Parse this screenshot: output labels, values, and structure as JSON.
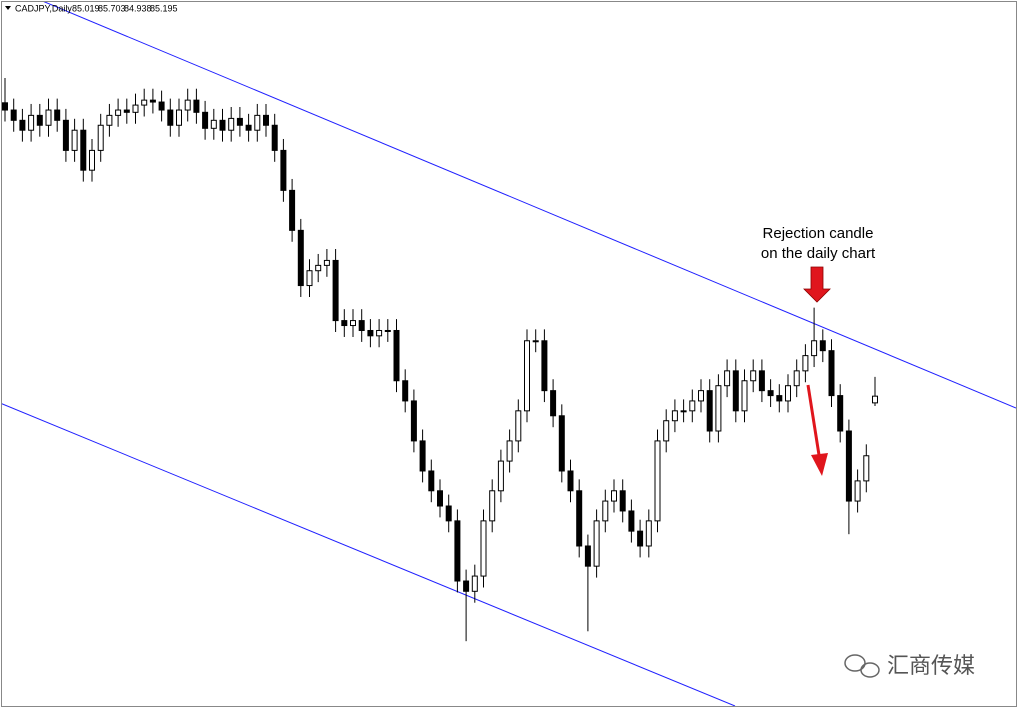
{
  "chart_data": {
    "type": "candlestick",
    "symbol": "CADJPY,Daily",
    "annotation": [
      "Rejection candle",
      "on the daily chart"
    ],
    "watermark": "汇商传媒",
    "ylim": [
      76.9,
      95.6
    ],
    "open": [
      92.9,
      92.71,
      92.44,
      92.18,
      92.57,
      92.31,
      92.71,
      92.44,
      91.65,
      92.18,
      91.13,
      91.65,
      92.31,
      92.57,
      92.71,
      92.65,
      92.84,
      92.97,
      92.92,
      92.71,
      92.31,
      92.71,
      92.97,
      92.65,
      92.23,
      92.44,
      92.18,
      92.49,
      92.31,
      92.18,
      92.57,
      92.31,
      91.65,
      90.6,
      89.55,
      88.1,
      88.49,
      88.63,
      88.76,
      87.18,
      87.05,
      87.18,
      86.92,
      86.78,
      86.92,
      86.92,
      85.6,
      85.07,
      84.02,
      83.23,
      82.71,
      82.31,
      81.92,
      80.34,
      80.07,
      80.47,
      81.92,
      82.71,
      83.49,
      84.02,
      84.81,
      86.65,
      86.65,
      85.34,
      84.68,
      83.23,
      82.71,
      81.26,
      80.73,
      81.92,
      82.44,
      82.71,
      82.18,
      81.65,
      81.26,
      81.92,
      84.02,
      84.55,
      84.81,
      84.81,
      85.07,
      85.34,
      84.28,
      85.47,
      85.86,
      84.81,
      85.6,
      85.86,
      85.34,
      85.21,
      85.07,
      85.47,
      85.86,
      86.26,
      86.65,
      86.39,
      85.21,
      84.28,
      82.44,
      82.97,
      85.019
    ],
    "high": [
      93.55,
      93.01,
      92.74,
      92.87,
      92.87,
      93.01,
      93.01,
      92.74,
      92.48,
      92.48,
      91.95,
      92.61,
      92.87,
      93.01,
      93.01,
      93.14,
      93.27,
      93.27,
      93.22,
      93.01,
      93.01,
      93.27,
      93.27,
      92.95,
      92.74,
      92.74,
      92.79,
      92.79,
      92.61,
      92.87,
      92.87,
      92.61,
      91.95,
      90.9,
      89.85,
      88.79,
      88.93,
      89.06,
      89.06,
      87.48,
      87.48,
      87.48,
      87.22,
      87.22,
      87.22,
      87.22,
      85.9,
      85.37,
      84.32,
      83.53,
      83.01,
      82.61,
      82.22,
      80.64,
      80.77,
      82.22,
      83.01,
      83.79,
      84.32,
      85.11,
      86.95,
      86.95,
      86.95,
      85.64,
      84.98,
      83.53,
      83.01,
      81.56,
      82.22,
      82.74,
      83.01,
      83.01,
      82.48,
      81.95,
      82.22,
      84.32,
      84.85,
      85.11,
      85.11,
      85.37,
      85.64,
      85.64,
      85.77,
      86.16,
      86.16,
      85.9,
      86.16,
      86.16,
      85.64,
      85.51,
      85.77,
      86.16,
      86.56,
      87.52,
      86.95,
      86.69,
      85.51,
      84.58,
      83.27,
      83.93,
      85.703
    ],
    "low": [
      92.41,
      92.14,
      91.88,
      91.88,
      92.01,
      92.01,
      92.14,
      91.35,
      91.35,
      90.83,
      90.83,
      91.35,
      92.01,
      92.27,
      92.35,
      92.35,
      92.54,
      92.62,
      92.41,
      92.01,
      92.01,
      92.41,
      92.35,
      91.93,
      91.93,
      91.88,
      91.88,
      92.01,
      91.88,
      91.88,
      92.01,
      91.35,
      90.3,
      89.25,
      87.8,
      87.8,
      88.19,
      88.33,
      86.88,
      86.75,
      86.75,
      86.62,
      86.48,
      86.48,
      86.62,
      85.3,
      84.77,
      83.72,
      82.93,
      82.41,
      82.01,
      81.62,
      80.04,
      78.76,
      79.77,
      80.17,
      81.62,
      82.41,
      83.19,
      83.72,
      84.51,
      86.35,
      85.04,
      84.38,
      82.93,
      82.41,
      80.96,
      79.02,
      80.43,
      81.62,
      82.14,
      81.88,
      81.35,
      80.96,
      80.96,
      81.62,
      83.72,
      84.25,
      84.51,
      84.51,
      84.77,
      83.98,
      83.98,
      85.17,
      84.51,
      84.51,
      85.3,
      85.04,
      84.91,
      84.77,
      84.77,
      85.17,
      85.56,
      85.96,
      86.09,
      84.91,
      83.98,
      81.57,
      82.14,
      82.67,
      84.938
    ],
    "close": [
      92.71,
      92.44,
      92.18,
      92.57,
      92.31,
      92.71,
      92.44,
      91.65,
      92.18,
      91.13,
      91.65,
      92.31,
      92.57,
      92.71,
      92.65,
      92.84,
      92.97,
      92.92,
      92.71,
      92.31,
      92.71,
      92.97,
      92.65,
      92.23,
      92.44,
      92.18,
      92.49,
      92.31,
      92.18,
      92.57,
      92.31,
      91.65,
      90.6,
      89.55,
      88.1,
      88.49,
      88.63,
      88.76,
      87.18,
      87.05,
      87.18,
      86.92,
      86.78,
      86.92,
      86.92,
      85.6,
      85.07,
      84.02,
      83.23,
      82.71,
      82.31,
      81.92,
      80.34,
      80.07,
      80.47,
      81.92,
      82.71,
      83.49,
      84.02,
      84.81,
      86.65,
      86.65,
      85.34,
      84.68,
      83.23,
      82.71,
      81.26,
      80.73,
      81.92,
      82.44,
      82.71,
      82.18,
      81.65,
      81.26,
      81.92,
      84.02,
      84.55,
      84.81,
      84.81,
      85.07,
      85.34,
      84.28,
      85.47,
      85.86,
      84.81,
      85.6,
      85.86,
      85.34,
      85.21,
      85.07,
      85.47,
      85.86,
      86.26,
      86.65,
      86.39,
      85.21,
      84.28,
      82.44,
      82.97,
      83.63,
      85.195
    ]
  }
}
